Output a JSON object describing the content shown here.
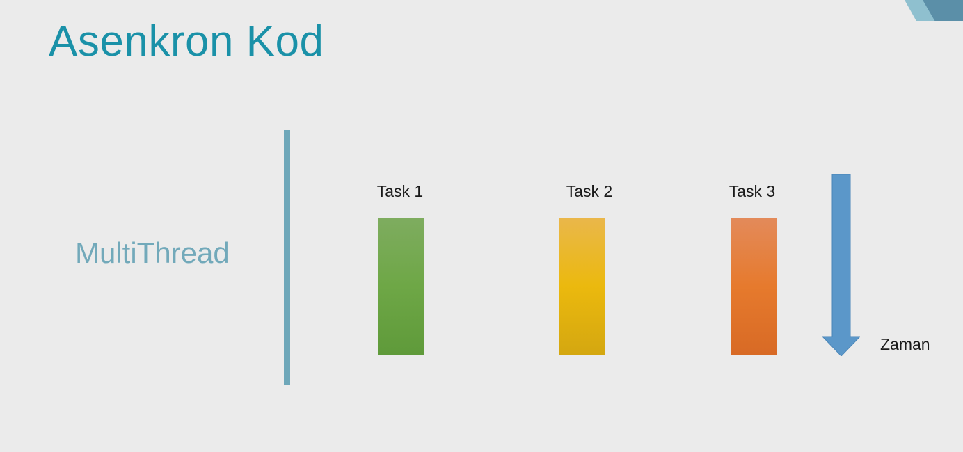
{
  "slide": {
    "title": "Asenkron Kod",
    "section_label": "MultiThread",
    "tasks": [
      {
        "label": "Task 1",
        "color": "#6ea746"
      },
      {
        "label": "Task 2",
        "color": "#ebb90e"
      },
      {
        "label": "Task 3",
        "color": "#e67a2d"
      }
    ],
    "time_label": "Zaman",
    "arrow_color": "#5b97c9",
    "title_color": "#1a91a8",
    "divider_color": "#6ea7b9"
  }
}
